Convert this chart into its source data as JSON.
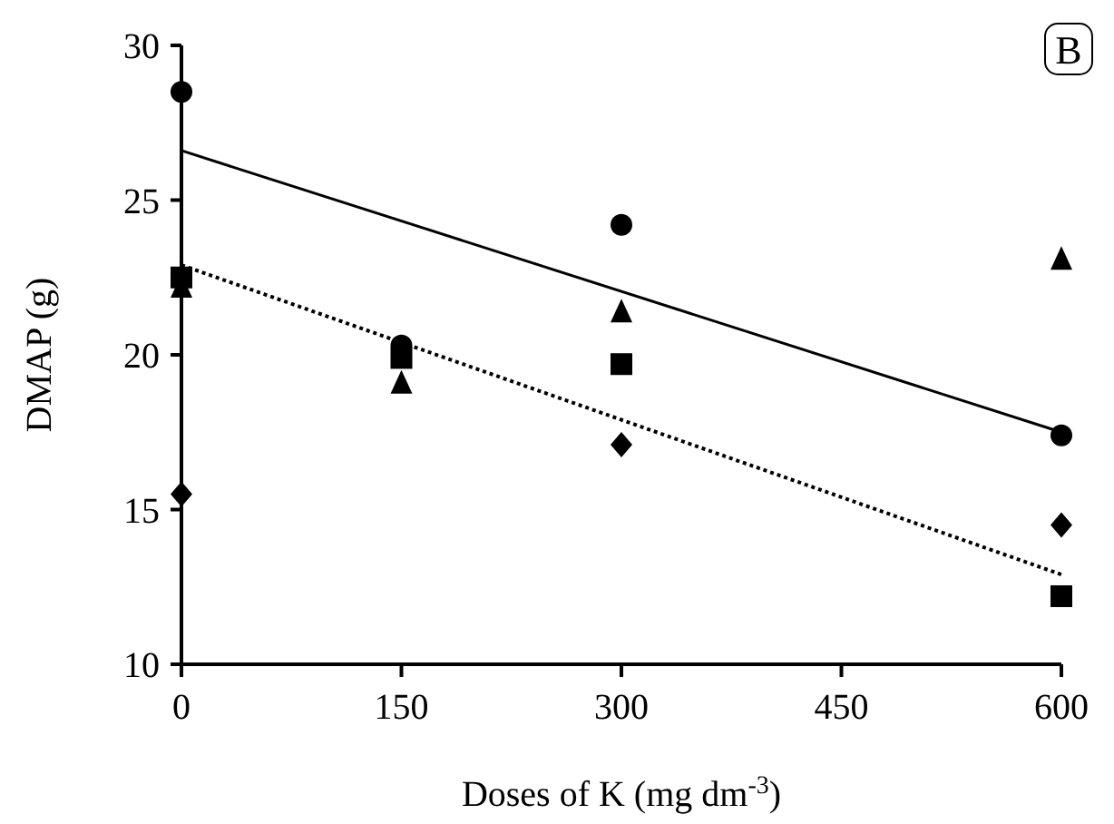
{
  "chart_data": {
    "type": "scatter",
    "xlabel": "Doses of K (mg dm$^{-3}$)",
    "ylabel": "DMAP (g)",
    "annotations": [
      "B"
    ],
    "xlim": [
      0,
      600
    ],
    "xticks": [
      0,
      150,
      300,
      450,
      600
    ],
    "ylim": [
      10,
      30
    ],
    "yticks": [
      10,
      15,
      20,
      25,
      30
    ],
    "grid": false,
    "series": [
      {
        "marker": "circle",
        "color": "#000000",
        "x": [
          0,
          150,
          300,
          600
        ],
        "values": [
          28.5,
          20.3,
          24.2,
          17.4
        ]
      },
      {
        "marker": "square",
        "color": "#000000",
        "x": [
          0,
          150,
          300,
          600
        ],
        "values": [
          22.5,
          19.9,
          19.7,
          12.2
        ]
      },
      {
        "marker": "triangle",
        "color": "#000000",
        "x": [
          0,
          150,
          300,
          600
        ],
        "values": [
          22.2,
          19.1,
          21.4,
          23.1
        ]
      },
      {
        "marker": "diamond",
        "color": "#000000",
        "x": [
          0,
          300,
          600
        ],
        "values": [
          15.5,
          17.1,
          14.5
        ]
      },
      {
        "type": "line",
        "line_style": "solid",
        "marker": "none",
        "color": "#000000",
        "x": [
          0,
          600
        ],
        "values": [
          26.6,
          17.5
        ]
      },
      {
        "type": "line",
        "line_style": "dotted",
        "marker": "none",
        "color": "#000000",
        "x": [
          0,
          600
        ],
        "values": [
          22.9,
          12.9
        ]
      }
    ]
  }
}
